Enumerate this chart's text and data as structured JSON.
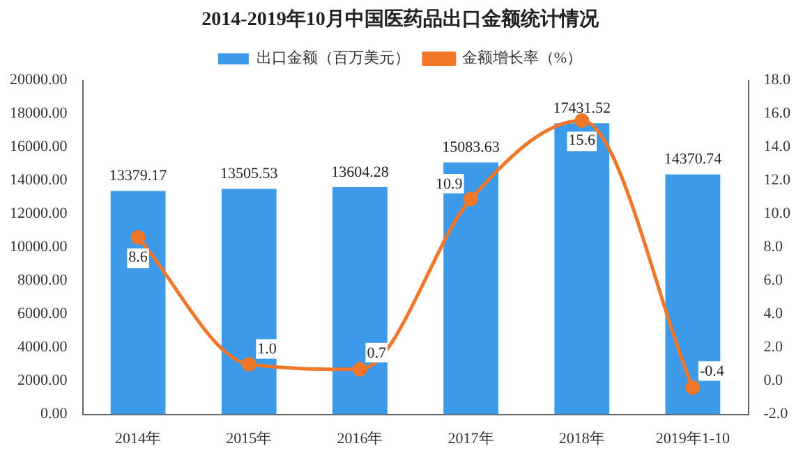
{
  "chart_data": {
    "type": "bar",
    "title": "2014-2019年10月中国医药品出口金额统计情况",
    "categories": [
      "2014年",
      "2015年",
      "2016年",
      "2017年",
      "2018年",
      "2019年1-10"
    ],
    "series": [
      {
        "name": "出口金额（百万美元）",
        "color": "#3d9ae8",
        "values": [
          13379.17,
          13505.53,
          13604.28,
          15083.63,
          17431.52,
          14370.74
        ],
        "value_labels": [
          "13379.17",
          "13505.53",
          "13604.28",
          "15083.63",
          "17431.52",
          "14370.74"
        ]
      },
      {
        "name": "金额增长率（%）",
        "type": "line",
        "axis": "y2",
        "color": "#f0772a",
        "values": [
          8.6,
          1.0,
          0.7,
          10.9,
          15.6,
          -0.4
        ],
        "value_labels": [
          "8.6",
          "1.0",
          "0.7",
          "10.9",
          "15.6",
          "-0.4"
        ]
      }
    ],
    "ylim": [
      0,
      20000
    ],
    "yticks": [
      {
        "value": 0,
        "label": "0.00"
      },
      {
        "value": 2000,
        "label": "2000.00"
      },
      {
        "value": 4000,
        "label": "4000.00"
      },
      {
        "value": 6000,
        "label": "6000.00"
      },
      {
        "value": 8000,
        "label": "8000.00"
      },
      {
        "value": 10000,
        "label": "10000.00"
      },
      {
        "value": 12000,
        "label": "12000.00"
      },
      {
        "value": 14000,
        "label": "14000.00"
      },
      {
        "value": 16000,
        "label": "16000.00"
      },
      {
        "value": 18000,
        "label": "18000.00"
      },
      {
        "value": 20000,
        "label": "20000.00"
      }
    ],
    "y2lim": [
      -2,
      18
    ],
    "y2ticks": [
      {
        "value": -2,
        "label": "-2.0"
      },
      {
        "value": 0,
        "label": "0.0"
      },
      {
        "value": 2,
        "label": "2.0"
      },
      {
        "value": 4,
        "label": "4.0"
      },
      {
        "value": 6,
        "label": "6.0"
      },
      {
        "value": 8,
        "label": "8.0"
      },
      {
        "value": 10,
        "label": "10.0"
      },
      {
        "value": 12,
        "label": "12.0"
      },
      {
        "value": 14,
        "label": "14.0"
      },
      {
        "value": 16,
        "label": "16.0"
      },
      {
        "value": 18,
        "label": "18.0"
      }
    ],
    "grid": false,
    "legend": "top",
    "marker": "circle",
    "line_style": "solid"
  }
}
